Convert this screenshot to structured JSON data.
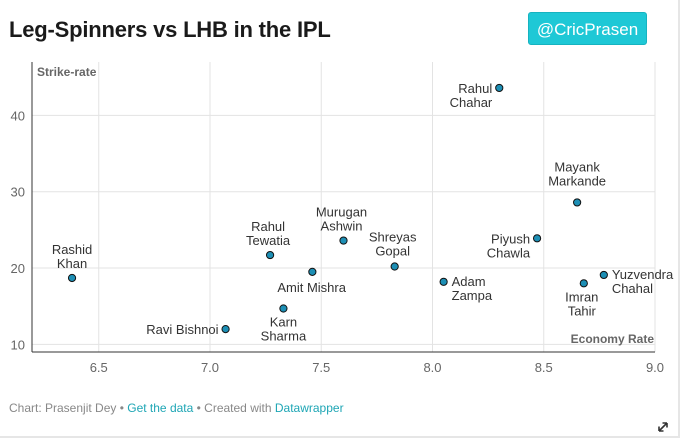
{
  "title": "Leg-Spinners vs LHB in the IPL",
  "handle": "@CricPrasen",
  "footer": {
    "chart_label": "Chart: Prasenjit Dey",
    "sep1": " • ",
    "get_data": "Get the data",
    "sep2": " • Created with ",
    "tool": "Datawrapper"
  },
  "colors": {
    "point_fill": "#1d8fb5",
    "point_stroke": "#111111",
    "grid": "#e3e3e3",
    "handle_bg": "#1ec8d6"
  },
  "chart_data": {
    "type": "scatter",
    "xlabel": "Economy Rate",
    "ylabel": "Strike-rate",
    "xlim": [
      6.2,
      9.0
    ],
    "ylim": [
      9,
      47
    ],
    "x_ticks": [
      6.5,
      7.0,
      7.5,
      8.0,
      8.5,
      9.0
    ],
    "x_tick_labels": [
      "6.5",
      "7.0",
      "7.5",
      "8.0",
      "8.5",
      "9.0"
    ],
    "y_ticks": [
      10,
      20,
      30,
      40
    ],
    "y_tick_labels": [
      "10",
      "20",
      "30",
      "40"
    ],
    "grid": true,
    "points": [
      {
        "label": [
          "Rashid",
          "Khan"
        ],
        "x": 6.38,
        "y": 18.7
      },
      {
        "label": [
          "Ravi Bishnoi"
        ],
        "x": 7.07,
        "y": 12.0
      },
      {
        "label": [
          "Rahul",
          "Tewatia"
        ],
        "x": 7.27,
        "y": 21.7
      },
      {
        "label": [
          "Karn",
          "Sharma"
        ],
        "x": 7.33,
        "y": 14.7
      },
      {
        "label": [
          "Amit Mishra"
        ],
        "x": 7.46,
        "y": 19.5
      },
      {
        "label": [
          "Murugan",
          "Ashwin"
        ],
        "x": 7.6,
        "y": 23.6
      },
      {
        "label": [
          "Shreyas",
          "Gopal"
        ],
        "x": 7.83,
        "y": 20.2
      },
      {
        "label": [
          "Adam",
          "Zampa"
        ],
        "x": 8.05,
        "y": 18.2
      },
      {
        "label": [
          "Rahul",
          "Chahar"
        ],
        "x": 8.3,
        "y": 43.6
      },
      {
        "label": [
          "Piyush",
          "Chawla"
        ],
        "x": 8.47,
        "y": 23.9
      },
      {
        "label": [
          "Mayank",
          "Markande"
        ],
        "x": 8.65,
        "y": 28.6
      },
      {
        "label": [
          "Imran",
          "Tahir"
        ],
        "x": 8.68,
        "y": 18.0
      },
      {
        "label": [
          "Yuzvendra",
          "Chahal"
        ],
        "x": 8.77,
        "y": 19.1
      }
    ]
  }
}
